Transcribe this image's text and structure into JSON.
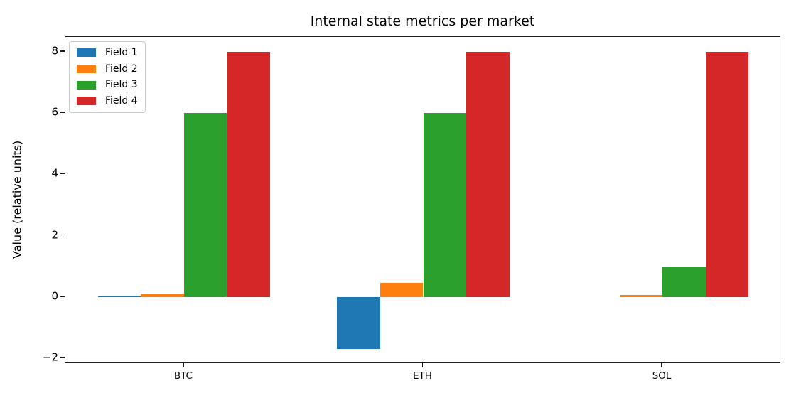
{
  "chart_data": {
    "type": "bar",
    "title": "Internal state metrics per market",
    "xlabel": "",
    "ylabel": "Value (relative units)",
    "categories": [
      "BTC",
      "ETH",
      "SOL"
    ],
    "series": [
      {
        "name": "Field 1",
        "color": "#1f77b4",
        "values": [
          0.05,
          -1.7,
          0.0
        ]
      },
      {
        "name": "Field 2",
        "color": "#ff7f0e",
        "values": [
          0.12,
          0.47,
          0.06
        ]
      },
      {
        "name": "Field 3",
        "color": "#2ca02c",
        "values": [
          6.0,
          6.0,
          0.98
        ]
      },
      {
        "name": "Field 4",
        "color": "#d62728",
        "values": [
          8.0,
          8.0,
          8.0
        ]
      }
    ],
    "yticks": [
      8,
      6,
      4,
      2,
      0,
      -2
    ],
    "ytick_labels": [
      "8",
      "6",
      "4",
      "2",
      "0",
      "−2"
    ],
    "ylim": [
      -2.185,
      8.485
    ],
    "xlim": [
      -0.496,
      2.496
    ],
    "bar_width": 0.18,
    "grid": false,
    "legend_position": "upper left",
    "background_color": "#ffffff",
    "spine_color": "#1c1c1c"
  }
}
